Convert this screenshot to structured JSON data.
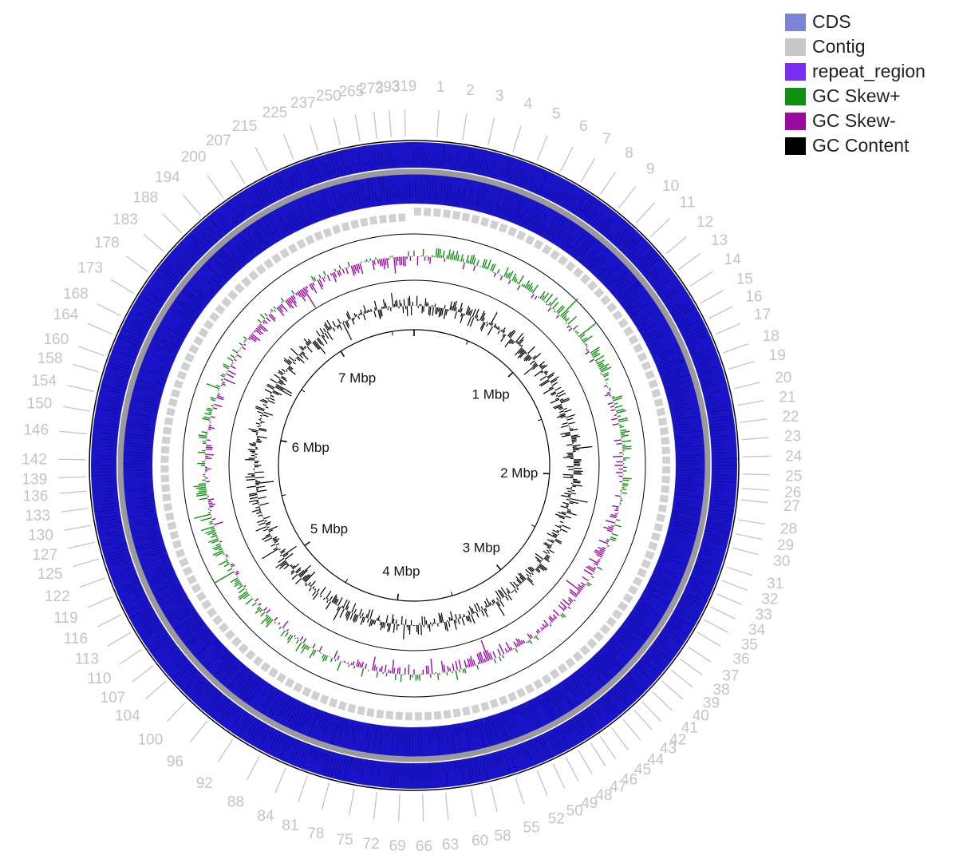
{
  "legend": [
    {
      "label": "CDS",
      "color": "#7b84d6"
    },
    {
      "label": "Contig",
      "color": "#c8c8c8"
    },
    {
      "label": "repeat_region",
      "color": "#7a2df2"
    },
    {
      "label": "GC Skew+",
      "color": "#109010"
    },
    {
      "label": "GC Skew-",
      "color": "#9a0aa0"
    },
    {
      "label": "GC Content",
      "color": "#000000"
    }
  ],
  "colors": {
    "cds": "#1a14c8",
    "cds_dark": "#0a0890",
    "contig": "#9a9a9a",
    "contig_light": "#d0d0d0",
    "gc_skew_plus": "#109010",
    "gc_skew_minus": "#9a0aa0",
    "gc_content": "#000000",
    "contig_label": "#c4c4c4"
  },
  "genome": {
    "total_mbp": 7.7,
    "scale_labels": [
      "1 Mbp",
      "2 Mbp",
      "3 Mbp",
      "4 Mbp",
      "5 Mbp",
      "6 Mbp",
      "7 Mbp"
    ]
  },
  "contig_labels": [
    {
      "label": "1",
      "deg": 4.0
    },
    {
      "label": "2",
      "deg": 8.5
    },
    {
      "label": "3",
      "deg": 13.0
    },
    {
      "label": "4",
      "deg": 17.5
    },
    {
      "label": "5",
      "deg": 22.0
    },
    {
      "label": "6",
      "deg": 26.5
    },
    {
      "label": "7",
      "deg": 30.5
    },
    {
      "label": "8",
      "deg": 34.5
    },
    {
      "label": "9",
      "deg": 38.5
    },
    {
      "label": "10",
      "deg": 42.5
    },
    {
      "label": "11",
      "deg": 46.0
    },
    {
      "label": "12",
      "deg": 50.0
    },
    {
      "label": "13",
      "deg": 53.5
    },
    {
      "label": "14",
      "deg": 57.0
    },
    {
      "label": "15",
      "deg": 60.5
    },
    {
      "label": "16",
      "deg": 63.5
    },
    {
      "label": "17",
      "deg": 66.5
    },
    {
      "label": "18",
      "deg": 70.0
    },
    {
      "label": "19",
      "deg": 73.0
    },
    {
      "label": "20",
      "deg": 76.5
    },
    {
      "label": "21",
      "deg": 79.5
    },
    {
      "label": "22",
      "deg": 82.5
    },
    {
      "label": "23",
      "deg": 85.5
    },
    {
      "label": "24",
      "deg": 88.5
    },
    {
      "label": "25",
      "deg": 91.5
    },
    {
      "label": "26",
      "deg": 94.0
    },
    {
      "label": "27",
      "deg": 96.0
    },
    {
      "label": "28",
      "deg": 99.5
    },
    {
      "label": "29",
      "deg": 102.0
    },
    {
      "label": "30",
      "deg": 104.5
    },
    {
      "label": "31",
      "deg": 108.0
    },
    {
      "label": "32",
      "deg": 110.5
    },
    {
      "label": "33",
      "deg": 113.0
    },
    {
      "label": "34",
      "deg": 115.5
    },
    {
      "label": "35",
      "deg": 118.0
    },
    {
      "label": "36",
      "deg": 120.5
    },
    {
      "label": "37",
      "deg": 123.5
    },
    {
      "label": "38",
      "deg": 126.0
    },
    {
      "label": "39",
      "deg": 128.5
    },
    {
      "label": "40",
      "deg": 131.0
    },
    {
      "label": "41",
      "deg": 133.5
    },
    {
      "label": "42",
      "deg": 136.0
    },
    {
      "label": "43",
      "deg": 138.0
    },
    {
      "label": "44",
      "deg": 140.5
    },
    {
      "label": "45",
      "deg": 143.0
    },
    {
      "label": "46",
      "deg": 145.5
    },
    {
      "label": "47",
      "deg": 147.5
    },
    {
      "label": "48",
      "deg": 150.0
    },
    {
      "label": "49",
      "deg": 152.5
    },
    {
      "label": "50",
      "deg": 155.0
    },
    {
      "label": "52",
      "deg": 158.0
    },
    {
      "label": "55",
      "deg": 162.0
    },
    {
      "label": "58",
      "deg": 166.5
    },
    {
      "label": "60",
      "deg": 170.0
    },
    {
      "label": "63",
      "deg": 174.5
    },
    {
      "label": "66",
      "deg": 178.5
    },
    {
      "label": "69",
      "deg": 182.5
    },
    {
      "label": "72",
      "deg": 186.5
    },
    {
      "label": "75",
      "deg": 190.5
    },
    {
      "label": "78",
      "deg": 195.0
    },
    {
      "label": "81",
      "deg": 199.0
    },
    {
      "label": "84",
      "deg": 203.0
    },
    {
      "label": "88",
      "deg": 208.0
    },
    {
      "label": "92",
      "deg": 213.5
    },
    {
      "label": "96",
      "deg": 219.0
    },
    {
      "label": "100",
      "deg": 224.0
    },
    {
      "label": "104",
      "deg": 229.0
    },
    {
      "label": "107",
      "deg": 232.5
    },
    {
      "label": "110",
      "deg": 236.0
    },
    {
      "label": "113",
      "deg": 239.5
    },
    {
      "label": "116",
      "deg": 243.0
    },
    {
      "label": "119",
      "deg": 246.5
    },
    {
      "label": "122",
      "deg": 250.0
    },
    {
      "label": "125",
      "deg": 253.5
    },
    {
      "label": "127",
      "deg": 256.5
    },
    {
      "label": "130",
      "deg": 259.5
    },
    {
      "label": "133",
      "deg": 262.5
    },
    {
      "label": "136",
      "deg": 265.5
    },
    {
      "label": "139",
      "deg": 268.0
    },
    {
      "label": "142",
      "deg": 271.0
    },
    {
      "label": "146",
      "deg": 275.5
    },
    {
      "label": "150",
      "deg": 279.5
    },
    {
      "label": "154",
      "deg": 283.0
    },
    {
      "label": "158",
      "deg": 286.5
    },
    {
      "label": "160",
      "deg": 289.5
    },
    {
      "label": "164",
      "deg": 293.5
    },
    {
      "label": "168",
      "deg": 297.0
    },
    {
      "label": "173",
      "deg": 301.5
    },
    {
      "label": "178",
      "deg": 306.0
    },
    {
      "label": "183",
      "deg": 310.5
    },
    {
      "label": "188",
      "deg": 315.0
    },
    {
      "label": "194",
      "deg": 319.5
    },
    {
      "label": "200",
      "deg": 324.5
    },
    {
      "label": "207",
      "deg": 329.0
    },
    {
      "label": "215",
      "deg": 333.5
    },
    {
      "label": "225",
      "deg": 338.5
    },
    {
      "label": "237",
      "deg": 343.0
    },
    {
      "label": "250",
      "deg": 347.0
    },
    {
      "label": "265",
      "deg": 350.5
    },
    {
      "label": "273",
      "deg": 353.5
    },
    {
      "label": "293",
      "deg": 356.0
    },
    {
      "label": "319",
      "deg": 358.5
    }
  ]
}
